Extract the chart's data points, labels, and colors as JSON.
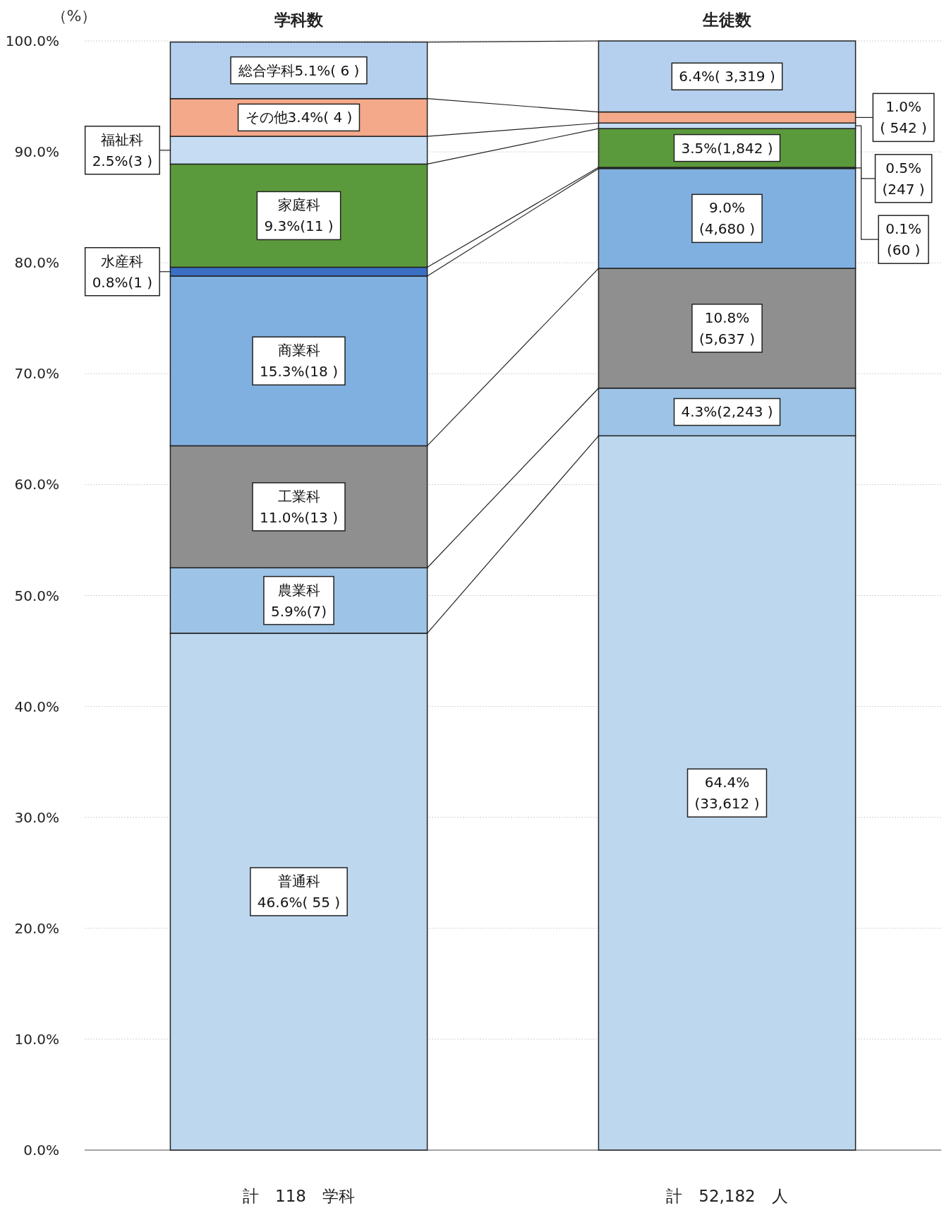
{
  "chart_data": {
    "type": "bar",
    "stacked": true,
    "categories": [
      "学科数",
      "生徒数"
    ],
    "ylabel": "（%）",
    "ylim": [
      0,
      100
    ],
    "yticks": [
      {
        "value": 0,
        "label": "0.0%"
      },
      {
        "value": 10,
        "label": "10.0%"
      },
      {
        "value": 20,
        "label": "20.0%"
      },
      {
        "value": 30,
        "label": "30.0%"
      },
      {
        "value": 40,
        "label": "40.0%"
      },
      {
        "value": 50,
        "label": "50.0%"
      },
      {
        "value": 60,
        "label": "60.0%"
      },
      {
        "value": 70,
        "label": "70.0%"
      },
      {
        "value": 80,
        "label": "80.0%"
      },
      {
        "value": 90,
        "label": "90.0%"
      },
      {
        "value": 100,
        "label": "100.0%"
      }
    ],
    "grid": "y",
    "legend": false,
    "series": [
      {
        "name": "普通科",
        "color": "#bdd7ee",
        "values": [
          46.6,
          64.4
        ],
        "value_labels": [
          "46.6%( 55 )",
          "64.4%\n(33,612 )"
        ]
      },
      {
        "name": "農業科",
        "color": "#9dc3e6",
        "values": [
          5.9,
          4.3
        ],
        "value_labels": [
          "5.9%(7)",
          "4.3%(2,243 )"
        ]
      },
      {
        "name": "工業科",
        "color": "#8f8f8f",
        "values": [
          11.0,
          10.8
        ],
        "value_labels": [
          "11.0%(13 )",
          "10.8%\n(5,637 )"
        ]
      },
      {
        "name": "商業科",
        "color": "#7fb0e0",
        "values": [
          15.3,
          9.0
        ],
        "value_labels": [
          "15.3%(18 )",
          "9.0%\n(4,680 )"
        ]
      },
      {
        "name": "水産科",
        "color": "#3a6fc4",
        "values": [
          0.8,
          0.1
        ],
        "value_labels": [
          "0.8%(1 )",
          "0.1%\n(60 )"
        ]
      },
      {
        "name": "家庭科",
        "color": "#5b9a3c",
        "values": [
          9.3,
          3.5
        ],
        "value_labels": [
          "9.3%(11 )",
          "3.5%(1,842 )"
        ]
      },
      {
        "name": "福祉科",
        "color": "#c5dcf2",
        "values": [
          2.5,
          0.5
        ],
        "value_labels": [
          "2.5%(3 )",
          "0.5%\n(247 )"
        ]
      },
      {
        "name": "その他",
        "color": "#f4a98a",
        "values": [
          3.4,
          1.0
        ],
        "value_labels": [
          "3.4%( 4 )",
          "1.0%\n( 542 )"
        ]
      },
      {
        "name": "総合学科",
        "color": "#b4d0ee",
        "values": [
          5.1,
          6.4
        ],
        "value_labels": [
          "5.1%( 6 )",
          "6.4%( 3,319 )"
        ]
      }
    ],
    "annotations": [
      "計　118　学科",
      "計　52,182　人"
    ]
  }
}
